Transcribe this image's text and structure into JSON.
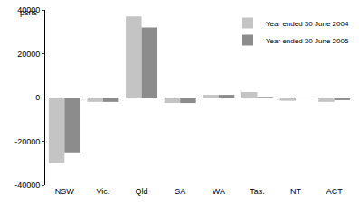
{
  "chart_data": {
    "type": "bar",
    "y_label": "psns",
    "categories": [
      "NSW",
      "Vic.",
      "Qld",
      "SA",
      "WA",
      "Tas.",
      "NT",
      "ACT"
    ],
    "series": [
      {
        "name": "Year ended 30 June 2004",
        "color": "#c4c4c4",
        "values": [
          -30000,
          -2000,
          37000,
          -2500,
          1200,
          2500,
          -1500,
          -2000
        ]
      },
      {
        "name": "Year ended 30 June 2005",
        "color": "#8c8c8c",
        "values": [
          -25000,
          -2000,
          32000,
          -2500,
          1200,
          300,
          -300,
          -1200
        ]
      }
    ],
    "ylim": [
      -40000,
      40000
    ],
    "yticks": [
      -40000,
      -20000,
      0,
      20000,
      40000
    ],
    "grid": false,
    "legend": "top right"
  }
}
